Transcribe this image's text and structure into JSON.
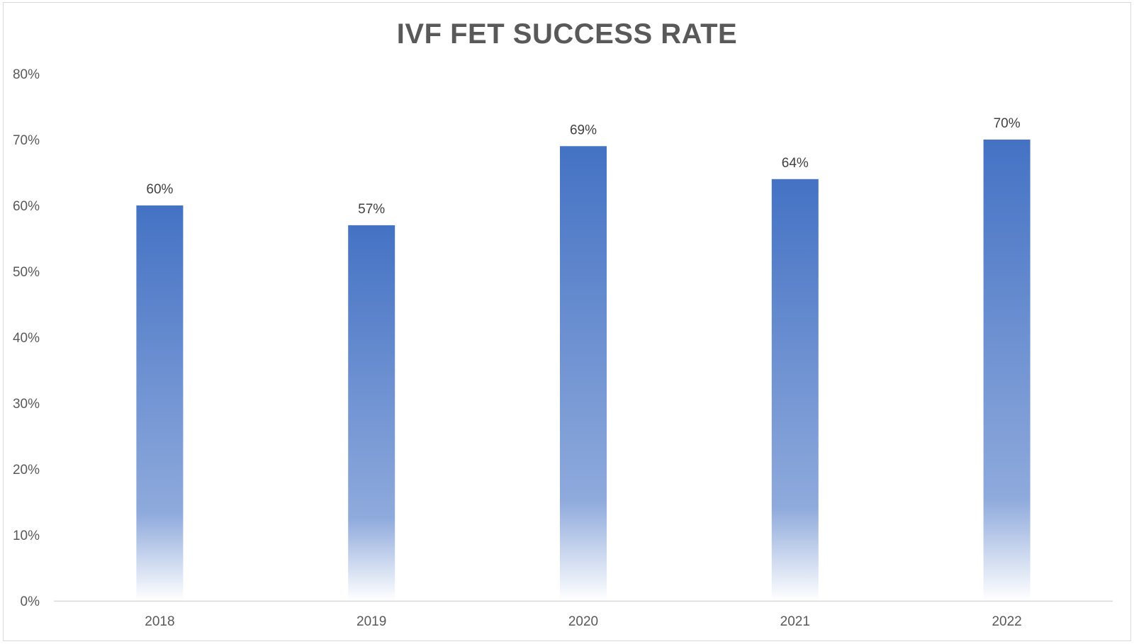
{
  "chart_data": {
    "type": "bar",
    "title": "IVF FET SUCCESS RATE",
    "xlabel": "",
    "ylabel": "",
    "categories": [
      "2018",
      "2019",
      "2020",
      "2021",
      "2022"
    ],
    "values": [
      60,
      57,
      69,
      64,
      70
    ],
    "data_labels": [
      "60%",
      "57%",
      "69%",
      "64%",
      "70%"
    ],
    "ylim": [
      0,
      80
    ],
    "y_ticks": [
      0,
      10,
      20,
      30,
      40,
      50,
      60,
      70,
      80
    ],
    "y_tick_labels": [
      "0%",
      "10%",
      "20%",
      "30%",
      "40%",
      "50%",
      "60%",
      "70%",
      "80%"
    ],
    "grid": false,
    "legend": "none",
    "colors": {
      "bar_top": "#4472c4",
      "bar_mid": "#8faadc",
      "bar_bottom": "#ffffff",
      "axis": "#d9d9d9",
      "text": "#595959"
    }
  }
}
